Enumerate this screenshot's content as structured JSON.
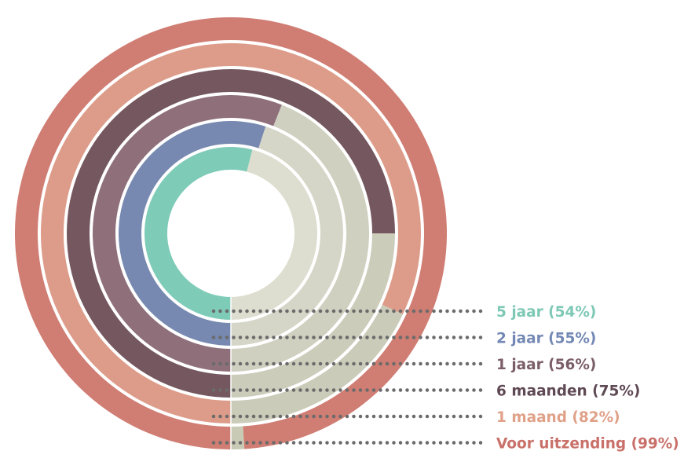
{
  "chart_data": {
    "type": "radial-bar",
    "rings": [
      {
        "label": "Voor uitzending (99%)",
        "value": 99,
        "color": "#d07d73",
        "track": "#c9cab5"
      },
      {
        "label": "1 maand (82%)",
        "value": 82,
        "color": "#dd9c89",
        "track": "#cacbb8"
      },
      {
        "label": "6 maanden (75%)",
        "value": 75,
        "color": "#74575f",
        "track": "#ccccbb"
      },
      {
        "label": "1 jaar (56%)",
        "value": 56,
        "color": "#8e6f7a",
        "track": "#d0d0c0"
      },
      {
        "label": "2 jaar (55%)",
        "value": 55,
        "color": "#7789b0",
        "track": "#d5d6c7"
      },
      {
        "label": "5 jaar (54%)",
        "value": 54,
        "color": "#7ecbb8",
        "track": "#dddecf"
      }
    ],
    "label_colors": [
      "#c9706a",
      "#e0a189",
      "#5f4954",
      "#7a5d67",
      "#7388b4",
      "#7ec8b6"
    ]
  }
}
